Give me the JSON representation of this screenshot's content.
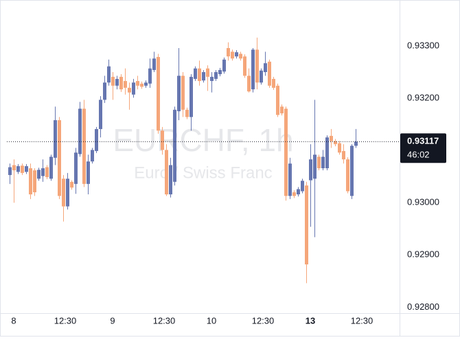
{
  "chart_data": {
    "type": "candlestick",
    "title": "EURCHF, 1h",
    "subtitle": "Euro / Swiss Franc",
    "up_color": "#6676b0",
    "down_color": "#f5a67a",
    "x": [
      -1,
      0,
      1,
      2,
      3,
      4,
      5,
      6,
      7,
      8,
      9,
      10,
      11,
      12,
      13,
      14,
      15,
      16,
      17,
      18,
      19,
      20,
      21,
      22,
      23,
      24,
      25,
      26,
      27,
      28,
      29,
      30,
      31,
      32,
      33,
      34,
      35,
      36,
      37,
      38,
      39,
      40,
      41,
      42,
      43,
      44,
      45,
      46,
      47,
      48,
      49,
      50,
      51,
      52,
      53,
      54,
      55,
      56,
      57,
      58,
      59,
      60,
      61,
      62,
      63,
      64,
      65,
      66,
      67,
      68,
      69,
      70,
      71,
      72,
      73,
      74,
      75,
      76,
      77,
      78,
      79,
      80,
      81,
      82,
      83
    ],
    "open": [
      0.93053,
      0.93072,
      0.93059,
      0.93071,
      0.93059,
      0.93066,
      0.93062,
      0.93046,
      0.93051,
      0.93068,
      0.93046,
      0.93086,
      0.93158,
      0.93046,
      0.92993,
      0.9304,
      0.93036,
      0.93093,
      0.9318,
      0.93036,
      0.93079,
      0.93099,
      0.93141,
      0.93197,
      0.9323,
      0.93241,
      0.93224,
      0.93241,
      0.93233,
      0.9322,
      0.93207,
      0.93233,
      0.93228,
      0.93224,
      0.93228,
      0.93254,
      0.93279,
      0.93138,
      0.93101,
      0.93016,
      0.9304,
      0.93175,
      0.93243,
      0.93178,
      0.93164,
      0.93237,
      0.93257,
      0.93234,
      0.93257,
      0.93233,
      0.93237,
      0.93246,
      0.93251,
      0.93296,
      0.93289,
      0.9328,
      0.93285,
      0.9328,
      0.93243,
      0.93217,
      0.93293,
      0.9323,
      0.9325,
      0.9327,
      0.93237,
      0.93224,
      0.93184,
      0.9318,
      0.93013,
      0.9302,
      0.93016,
      0.93022,
      0.93033,
      0.93043,
      0.93046,
      0.93088,
      0.93066,
      0.93066,
      0.93128,
      0.93118,
      0.93114,
      0.93099,
      0.93083,
      0.93013,
      0.93109
    ],
    "high": [
      0.93075,
      0.93083,
      0.93074,
      0.93075,
      0.93074,
      0.93075,
      0.93066,
      0.93067,
      0.93083,
      0.93072,
      0.93092,
      0.93184,
      0.93164,
      0.93053,
      0.93057,
      0.93043,
      0.93105,
      0.93193,
      0.93197,
      0.93092,
      0.93105,
      0.93145,
      0.93204,
      0.93243,
      0.93274,
      0.9325,
      0.93243,
      0.93246,
      0.93257,
      0.9323,
      0.93237,
      0.93243,
      0.93232,
      0.93234,
      0.93276,
      0.93289,
      0.93285,
      0.93145,
      0.93112,
      0.93086,
      0.93184,
      0.93296,
      0.9325,
      0.93182,
      0.93246,
      0.93261,
      0.93272,
      0.93254,
      0.93263,
      0.9325,
      0.93254,
      0.93258,
      0.93278,
      0.93307,
      0.93293,
      0.93292,
      0.93289,
      0.93284,
      0.93257,
      0.93296,
      0.93316,
      0.93257,
      0.93289,
      0.93274,
      0.93241,
      0.93228,
      0.93188,
      0.93184,
      0.93086,
      0.93024,
      0.9303,
      0.93046,
      0.9304,
      0.93112,
      0.93197,
      0.93092,
      0.93101,
      0.93129,
      0.93141,
      0.93122,
      0.93118,
      0.93112,
      0.93087,
      0.93112,
      0.93141
    ],
    "low": [
      0.93036,
      0.93,
      0.93055,
      0.93053,
      0.93055,
      0.93007,
      0.93013,
      0.93042,
      0.9304,
      0.93045,
      0.93042,
      0.93072,
      0.93007,
      0.92964,
      0.92987,
      0.93025,
      0.93017,
      0.93088,
      0.9303,
      0.93016,
      0.93075,
      0.93095,
      0.93125,
      0.93191,
      0.93224,
      0.93197,
      0.93217,
      0.93212,
      0.93207,
      0.93178,
      0.93201,
      0.93217,
      0.93218,
      0.9322,
      0.9322,
      0.9325,
      0.93132,
      0.93092,
      0.93013,
      0.9301,
      0.93033,
      0.93158,
      0.93164,
      0.9316,
      0.93138,
      0.93233,
      0.93224,
      0.9323,
      0.93214,
      0.93211,
      0.93233,
      0.93242,
      0.93247,
      0.93272,
      0.93272,
      0.93276,
      0.93272,
      0.93239,
      0.93211,
      0.93211,
      0.93217,
      0.93226,
      0.93243,
      0.9322,
      0.93216,
      0.93164,
      0.93167,
      0.93004,
      0.93007,
      0.93009,
      0.93012,
      0.93018,
      0.92846,
      0.92954,
      0.92934,
      0.93062,
      0.93062,
      0.93062,
      0.93105,
      0.93108,
      0.93092,
      0.93075,
      0.93018,
      0.93007,
      0.93105
    ],
    "close": [
      0.93068,
      0.93062,
      0.9307,
      0.93057,
      0.9307,
      0.93016,
      0.9302,
      0.93063,
      0.93066,
      0.93049,
      0.93088,
      0.93158,
      0.93013,
      0.92993,
      0.93046,
      0.93029,
      0.93096,
      0.9318,
      0.93036,
      0.93079,
      0.93101,
      0.93141,
      0.93197,
      0.9323,
      0.93261,
      0.93224,
      0.93237,
      0.93217,
      0.9322,
      0.93211,
      0.9323,
      0.93224,
      0.93222,
      0.9323,
      0.93257,
      0.93276,
      0.93138,
      0.93101,
      0.93016,
      0.93072,
      0.93178,
      0.93243,
      0.93178,
      0.93164,
      0.93241,
      0.93257,
      0.93233,
      0.9325,
      0.93241,
      0.93241,
      0.9325,
      0.93254,
      0.93274,
      0.9328,
      0.93276,
      0.93288,
      0.93276,
      0.93243,
      0.93213,
      0.93293,
      0.9323,
      0.93253,
      0.93267,
      0.93224,
      0.9322,
      0.93168,
      0.93171,
      0.93013,
      0.93075,
      0.93013,
      0.93026,
      0.93042,
      0.92882,
      0.93083,
      0.93092,
      0.93066,
      0.93088,
      0.93125,
      0.93118,
      0.93112,
      0.93096,
      0.93083,
      0.93022,
      0.93109,
      0.93117
    ],
    "xlim": [
      -2,
      93
    ],
    "xticks": [
      {
        "value": 0,
        "label": "8"
      },
      {
        "value": 12.5,
        "label": "12:30"
      },
      {
        "value": 24,
        "label": "9"
      },
      {
        "value": 36.5,
        "label": "12:30"
      },
      {
        "value": 48,
        "label": "10"
      },
      {
        "value": 60.5,
        "label": "12:30"
      },
      {
        "value": 72,
        "label": "13"
      },
      {
        "value": 84.5,
        "label": "12:30"
      }
    ],
    "ylim": [
      0.9279,
      0.93388
    ],
    "yticks": [
      {
        "value": 0.933,
        "label": "0.93300"
      },
      {
        "value": 0.932,
        "label": "0.93200"
      },
      {
        "value": 0.93,
        "label": "0.93000"
      },
      {
        "value": 0.929,
        "label": "0.92900"
      },
      {
        "value": 0.928,
        "label": "0.92800"
      }
    ],
    "last_price": {
      "value": 0.93117,
      "label": "0.93117"
    },
    "countdown": "46:02"
  }
}
